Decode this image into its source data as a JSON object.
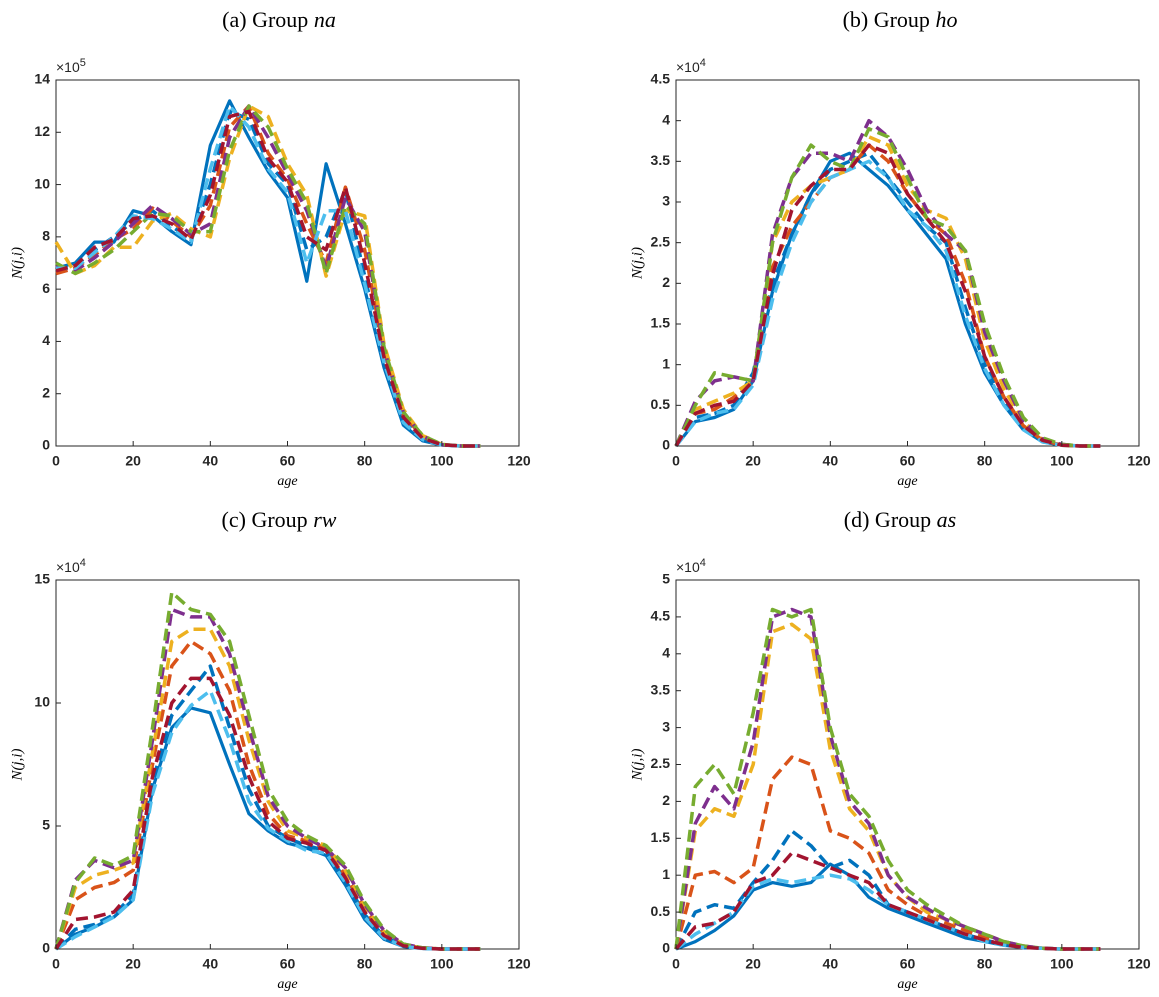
{
  "chart_data": [
    {
      "type": "line",
      "title": "(a) Group",
      "title_group": "na",
      "xlabel": "age",
      "ylabel": "N(j,i)",
      "y_scale_base": "×10",
      "y_scale_exponent": "5",
      "xlim": [
        0,
        120
      ],
      "xticks": [
        0,
        20,
        40,
        60,
        80,
        100,
        120
      ],
      "ylim": [
        0,
        14
      ],
      "yticks": [
        0,
        2,
        4,
        6,
        8,
        10,
        12,
        14
      ],
      "x": [
        0,
        5,
        10,
        15,
        20,
        25,
        30,
        35,
        40,
        45,
        50,
        55,
        60,
        65,
        70,
        75,
        80,
        85,
        90,
        95,
        100,
        105,
        110
      ],
      "series": [
        {
          "color": "#0072bd",
          "dashed": false,
          "values": [
            6.8,
            7.0,
            7.8,
            7.8,
            9.0,
            8.8,
            8.2,
            7.7,
            11.5,
            13.2,
            11.8,
            10.5,
            9.5,
            6.3,
            10.8,
            8.5,
            6.0,
            3.0,
            0.8,
            0.2,
            0.03,
            0,
            0
          ]
        },
        {
          "color": "#0072bd",
          "dashed": true,
          "values": [
            6.7,
            6.9,
            7.5,
            8.0,
            8.6,
            9.0,
            8.4,
            7.9,
            10.0,
            12.8,
            12.5,
            10.8,
            10.0,
            7.5,
            8.0,
            9.8,
            6.5,
            3.3,
            1.0,
            0.3,
            0.05,
            0,
            0
          ]
        },
        {
          "color": "#d95319",
          "dashed": true,
          "values": [
            6.6,
            6.8,
            7.3,
            7.9,
            8.3,
            9.1,
            8.6,
            8.0,
            9.2,
            12.2,
            13.0,
            11.2,
            10.2,
            8.5,
            7.0,
            9.9,
            7.5,
            3.6,
            1.2,
            0.35,
            0.05,
            0,
            0
          ]
        },
        {
          "color": "#edb120",
          "dashed": true,
          "values": [
            7.8,
            6.6,
            6.9,
            7.6,
            7.6,
            8.6,
            8.9,
            8.3,
            8.0,
            11.0,
            13.0,
            12.6,
            10.8,
            9.6,
            6.5,
            9.0,
            8.8,
            3.9,
            1.4,
            0.4,
            0.06,
            0,
            0
          ]
        },
        {
          "color": "#7e2f8e",
          "dashed": true,
          "values": [
            6.9,
            6.7,
            7.2,
            7.8,
            8.5,
            9.2,
            8.7,
            8.1,
            8.5,
            11.8,
            13.0,
            11.8,
            10.4,
            9.0,
            6.8,
            9.5,
            8.2,
            3.7,
            1.3,
            0.38,
            0.05,
            0,
            0
          ]
        },
        {
          "color": "#77ac30",
          "dashed": true,
          "values": [
            7.0,
            6.6,
            7.0,
            7.5,
            8.2,
            8.9,
            8.8,
            8.2,
            8.2,
            11.3,
            13.0,
            12.2,
            10.6,
            9.3,
            6.6,
            9.2,
            8.5,
            3.8,
            1.3,
            0.4,
            0.06,
            0,
            0
          ]
        },
        {
          "color": "#4dbeee",
          "dashed": true,
          "values": [
            6.8,
            6.8,
            7.4,
            8.0,
            8.8,
            8.7,
            8.3,
            7.8,
            10.6,
            13.0,
            12.2,
            10.6,
            9.7,
            7.0,
            9.0,
            9.0,
            6.2,
            3.2,
            0.9,
            0.25,
            0.04,
            0,
            0
          ]
        },
        {
          "color": "#a2142f",
          "dashed": true,
          "values": [
            6.7,
            6.9,
            7.6,
            7.9,
            8.7,
            8.8,
            8.5,
            7.9,
            9.6,
            12.6,
            12.8,
            11.0,
            10.1,
            8.0,
            7.5,
            9.9,
            7.0,
            3.4,
            1.1,
            0.3,
            0.05,
            0,
            0
          ]
        }
      ]
    },
    {
      "type": "line",
      "title": "(b) Group",
      "title_group": "ho",
      "xlabel": "age",
      "ylabel": "N(j,i)",
      "y_scale_base": "×10",
      "y_scale_exponent": "4",
      "xlim": [
        0,
        120
      ],
      "xticks": [
        0,
        20,
        40,
        60,
        80,
        100,
        120
      ],
      "ylim": [
        0,
        4.5
      ],
      "yticks": [
        0,
        0.5,
        1,
        1.5,
        2,
        2.5,
        3,
        3.5,
        4,
        4.5
      ],
      "x": [
        0,
        5,
        10,
        15,
        20,
        25,
        30,
        35,
        40,
        45,
        50,
        55,
        60,
        65,
        70,
        75,
        80,
        85,
        90,
        95,
        100,
        105,
        110
      ],
      "series": [
        {
          "color": "#0072bd",
          "dashed": false,
          "values": [
            0,
            0.3,
            0.35,
            0.45,
            0.8,
            1.9,
            2.6,
            3.1,
            3.5,
            3.6,
            3.4,
            3.2,
            2.9,
            2.6,
            2.3,
            1.5,
            0.9,
            0.5,
            0.2,
            0.05,
            0.01,
            0,
            0
          ]
        },
        {
          "color": "#0072bd",
          "dashed": true,
          "values": [
            0,
            0.35,
            0.4,
            0.5,
            0.9,
            2.0,
            2.6,
            3.1,
            3.4,
            3.5,
            3.6,
            3.3,
            3.0,
            2.7,
            2.5,
            1.7,
            1.0,
            0.55,
            0.22,
            0.06,
            0.01,
            0,
            0
          ]
        },
        {
          "color": "#d95319",
          "dashed": true,
          "values": [
            0,
            0.4,
            0.45,
            0.6,
            0.8,
            2.2,
            2.7,
            3.0,
            3.3,
            3.4,
            3.7,
            3.5,
            3.1,
            2.8,
            2.6,
            2.0,
            1.1,
            0.6,
            0.25,
            0.07,
            0.01,
            0,
            0
          ]
        },
        {
          "color": "#edb120",
          "dashed": true,
          "values": [
            0,
            0.45,
            0.55,
            0.65,
            0.8,
            2.5,
            3.0,
            3.2,
            3.3,
            3.4,
            3.8,
            3.7,
            3.2,
            2.9,
            2.8,
            2.3,
            1.3,
            0.7,
            0.3,
            0.08,
            0.01,
            0,
            0
          ]
        },
        {
          "color": "#7e2f8e",
          "dashed": true,
          "values": [
            0,
            0.55,
            0.8,
            0.85,
            0.8,
            2.6,
            3.3,
            3.6,
            3.6,
            3.5,
            4.0,
            3.8,
            3.4,
            2.9,
            2.6,
            2.4,
            1.4,
            0.8,
            0.32,
            0.09,
            0.02,
            0,
            0
          ]
        },
        {
          "color": "#77ac30",
          "dashed": true,
          "values": [
            0,
            0.5,
            0.9,
            0.85,
            0.8,
            2.5,
            3.3,
            3.7,
            3.5,
            3.4,
            3.9,
            3.8,
            3.3,
            2.8,
            2.7,
            2.4,
            1.5,
            0.85,
            0.35,
            0.1,
            0.02,
            0,
            0
          ]
        },
        {
          "color": "#4dbeee",
          "dashed": true,
          "values": [
            0,
            0.3,
            0.4,
            0.45,
            0.75,
            1.8,
            2.5,
            3.0,
            3.3,
            3.4,
            3.5,
            3.3,
            2.9,
            2.7,
            2.4,
            1.6,
            0.95,
            0.5,
            0.2,
            0.05,
            0.01,
            0,
            0
          ]
        },
        {
          "color": "#a2142f",
          "dashed": true,
          "values": [
            0,
            0.4,
            0.5,
            0.55,
            0.8,
            2.1,
            2.9,
            3.2,
            3.4,
            3.4,
            3.7,
            3.6,
            3.1,
            2.8,
            2.5,
            1.9,
            1.1,
            0.6,
            0.25,
            0.07,
            0.01,
            0,
            0
          ]
        }
      ]
    },
    {
      "type": "line",
      "title": "(c) Group",
      "title_group": "rw",
      "xlabel": "age",
      "ylabel": "N(j,i)",
      "y_scale_base": "×10",
      "y_scale_exponent": "4",
      "xlim": [
        0,
        120
      ],
      "xticks": [
        0,
        20,
        40,
        60,
        80,
        100,
        120
      ],
      "ylim": [
        0,
        15
      ],
      "yticks": [
        0,
        5,
        10,
        15
      ],
      "x": [
        0,
        5,
        10,
        15,
        20,
        25,
        30,
        35,
        40,
        45,
        50,
        55,
        60,
        65,
        70,
        75,
        80,
        85,
        90,
        95,
        100,
        105,
        110
      ],
      "series": [
        {
          "color": "#0072bd",
          "dashed": false,
          "values": [
            0,
            0.6,
            0.9,
            1.3,
            2.0,
            6.5,
            9.0,
            9.8,
            9.6,
            7.5,
            5.5,
            4.8,
            4.3,
            4.1,
            3.8,
            2.6,
            1.2,
            0.4,
            0.1,
            0.02,
            0,
            0,
            0
          ]
        },
        {
          "color": "#0072bd",
          "dashed": true,
          "values": [
            0,
            0.8,
            1.0,
            1.4,
            2.2,
            6.8,
            9.5,
            10.5,
            11.5,
            9.0,
            6.5,
            5.0,
            4.5,
            4.2,
            4.0,
            2.8,
            1.4,
            0.5,
            0.12,
            0.03,
            0,
            0,
            0
          ]
        },
        {
          "color": "#d95319",
          "dashed": true,
          "values": [
            0,
            2.0,
            2.5,
            2.7,
            3.2,
            7.5,
            11.5,
            12.5,
            12.0,
            10.5,
            7.5,
            5.5,
            4.6,
            4.4,
            4.1,
            3.0,
            1.6,
            0.6,
            0.15,
            0.03,
            0,
            0,
            0
          ]
        },
        {
          "color": "#edb120",
          "dashed": true,
          "values": [
            0,
            2.5,
            3.0,
            3.2,
            3.5,
            8.0,
            12.5,
            13.0,
            13.0,
            11.5,
            8.5,
            6.0,
            4.8,
            4.5,
            4.2,
            3.2,
            1.7,
            0.7,
            0.18,
            0.04,
            0,
            0,
            0
          ]
        },
        {
          "color": "#7e2f8e",
          "dashed": true,
          "values": [
            0,
            2.8,
            3.6,
            3.3,
            3.6,
            8.5,
            13.8,
            13.5,
            13.5,
            12.0,
            9.0,
            6.2,
            5.0,
            4.5,
            4.1,
            3.3,
            1.8,
            0.75,
            0.2,
            0.05,
            0,
            0,
            0
          ]
        },
        {
          "color": "#77ac30",
          "dashed": true,
          "values": [
            0,
            2.7,
            3.7,
            3.4,
            3.8,
            9.0,
            14.5,
            13.8,
            13.6,
            12.5,
            9.5,
            6.5,
            5.2,
            4.6,
            4.2,
            3.4,
            1.9,
            0.8,
            0.2,
            0.05,
            0,
            0,
            0
          ]
        },
        {
          "color": "#4dbeee",
          "dashed": true,
          "values": [
            0,
            0.5,
            0.9,
            1.3,
            2.0,
            6.3,
            8.8,
            9.9,
            10.5,
            8.5,
            6.0,
            4.9,
            4.4,
            4.0,
            3.9,
            2.7,
            1.3,
            0.45,
            0.1,
            0.02,
            0,
            0,
            0
          ]
        },
        {
          "color": "#a2142f",
          "dashed": true,
          "values": [
            0,
            1.2,
            1.3,
            1.5,
            2.4,
            7.0,
            10.0,
            11.0,
            11.0,
            9.5,
            7.0,
            5.2,
            4.5,
            4.3,
            4.0,
            2.9,
            1.5,
            0.55,
            0.13,
            0.03,
            0,
            0,
            0
          ]
        }
      ]
    },
    {
      "type": "line",
      "title": "(d) Group",
      "title_group": "as",
      "xlabel": "age",
      "ylabel": "N(j,i)",
      "y_scale_base": "×10",
      "y_scale_exponent": "4",
      "xlim": [
        0,
        120
      ],
      "xticks": [
        0,
        20,
        40,
        60,
        80,
        100,
        120
      ],
      "ylim": [
        0,
        5
      ],
      "yticks": [
        0,
        0.5,
        1,
        1.5,
        2,
        2.5,
        3,
        3.5,
        4,
        4.5,
        5
      ],
      "x": [
        0,
        5,
        10,
        15,
        20,
        25,
        30,
        35,
        40,
        45,
        50,
        55,
        60,
        65,
        70,
        75,
        80,
        85,
        90,
        95,
        100,
        105,
        110
      ],
      "series": [
        {
          "color": "#0072bd",
          "dashed": false,
          "values": [
            0,
            0.1,
            0.25,
            0.45,
            0.8,
            0.9,
            0.85,
            0.9,
            1.15,
            1.0,
            0.7,
            0.55,
            0.45,
            0.35,
            0.25,
            0.15,
            0.1,
            0.05,
            0.02,
            0.01,
            0,
            0,
            0
          ]
        },
        {
          "color": "#0072bd",
          "dashed": true,
          "values": [
            0,
            0.5,
            0.6,
            0.55,
            0.9,
            1.2,
            1.6,
            1.4,
            1.1,
            1.2,
            1.0,
            0.6,
            0.5,
            0.4,
            0.3,
            0.2,
            0.12,
            0.06,
            0.02,
            0.01,
            0,
            0,
            0
          ]
        },
        {
          "color": "#d95319",
          "dashed": true,
          "values": [
            0,
            1.0,
            1.05,
            0.9,
            1.1,
            2.3,
            2.6,
            2.5,
            1.6,
            1.5,
            1.3,
            0.8,
            0.6,
            0.45,
            0.35,
            0.25,
            0.15,
            0.08,
            0.03,
            0.01,
            0,
            0,
            0
          ]
        },
        {
          "color": "#edb120",
          "dashed": true,
          "values": [
            0,
            1.6,
            1.9,
            1.8,
            2.5,
            4.3,
            4.4,
            4.2,
            2.7,
            1.9,
            1.6,
            1.0,
            0.7,
            0.5,
            0.4,
            0.3,
            0.2,
            0.1,
            0.04,
            0.01,
            0,
            0,
            0
          ]
        },
        {
          "color": "#7e2f8e",
          "dashed": true,
          "values": [
            0,
            1.7,
            2.2,
            1.9,
            2.8,
            4.5,
            4.6,
            4.5,
            2.9,
            2.0,
            1.7,
            1.0,
            0.7,
            0.55,
            0.4,
            0.3,
            0.2,
            0.1,
            0.04,
            0.01,
            0,
            0,
            0
          ]
        },
        {
          "color": "#77ac30",
          "dashed": true,
          "values": [
            0,
            2.2,
            2.5,
            2.1,
            3.2,
            4.6,
            4.5,
            4.6,
            3.0,
            2.1,
            1.8,
            1.2,
            0.8,
            0.6,
            0.45,
            0.3,
            0.2,
            0.1,
            0.04,
            0.01,
            0,
            0,
            0
          ]
        },
        {
          "color": "#4dbeee",
          "dashed": true,
          "values": [
            0,
            0.2,
            0.35,
            0.5,
            0.85,
            0.95,
            0.9,
            0.95,
            1.0,
            0.95,
            0.8,
            0.6,
            0.5,
            0.4,
            0.3,
            0.2,
            0.1,
            0.05,
            0.02,
            0.01,
            0,
            0,
            0
          ]
        },
        {
          "color": "#a2142f",
          "dashed": true,
          "values": [
            0,
            0.3,
            0.35,
            0.5,
            0.9,
            1.0,
            1.3,
            1.2,
            1.1,
            1.0,
            0.9,
            0.6,
            0.5,
            0.4,
            0.3,
            0.2,
            0.12,
            0.06,
            0.02,
            0.01,
            0,
            0,
            0
          ]
        }
      ]
    }
  ]
}
